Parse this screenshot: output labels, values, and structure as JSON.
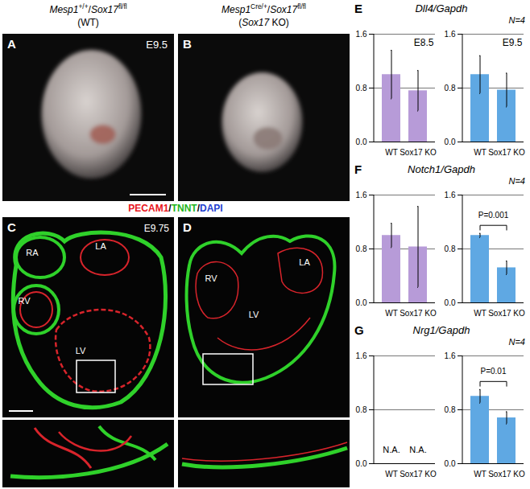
{
  "images": [
    {
      "panel": "A",
      "header": [
        [
          {
            "text": "Mesp1",
            "style": "italic"
          },
          {
            "text": "+/+",
            "style": "sup"
          },
          {
            "text": "/"
          },
          {
            "text": "Sox17",
            "style": "italic"
          },
          {
            "text": "fl/fl",
            "style": "sup"
          }
        ],
        [
          {
            "text": "(WT)"
          }
        ]
      ],
      "stage": "E9.5"
    },
    {
      "panel": "B",
      "header": [
        [
          {
            "text": "Mesp1",
            "style": "italic"
          },
          {
            "text": "Cre/+",
            "style": "sup"
          },
          {
            "text": "/"
          },
          {
            "text": "Sox17",
            "style": "italic"
          },
          {
            "text": "fl/fl",
            "style": "sup"
          }
        ],
        [
          {
            "text": "("
          },
          {
            "text": "Sox17",
            "style": "italic"
          },
          {
            "text": " KO)"
          }
        ]
      ]
    },
    {
      "panel": "C",
      "stage": "E9.75",
      "labels": [
        "RA",
        "LA",
        "RV",
        "LV"
      ]
    },
    {
      "panel": "D",
      "labels": [
        "RV",
        "LA",
        "LV"
      ]
    }
  ],
  "stain": [
    {
      "text": "PECAM1",
      "color": "#e8141b"
    },
    {
      "text": "/",
      "color": "#000000"
    },
    {
      "text": "TNNT",
      "color": "#22b51c"
    },
    {
      "text": "/",
      "color": "#000000"
    },
    {
      "text": "DAPI",
      "color": "#1f3fd0"
    }
  ],
  "chart_data": [
    {
      "panel": "E",
      "title": "Dll4/Gapdh",
      "note": "N=4",
      "charts": [
        {
          "type": "bar",
          "subtitle": "E8.5",
          "categories": [
            "WT",
            "Sox17 KO"
          ],
          "values": [
            1.0,
            0.76
          ],
          "errors": [
            0.36,
            0.3
          ],
          "color": "#b79bd8",
          "ylim": [
            0,
            1.6
          ],
          "yticks": [
            0,
            0.8,
            1.6
          ],
          "grid": true
        },
        {
          "type": "bar",
          "subtitle": "E9.5",
          "categories": [
            "WT",
            "Sox17 KO"
          ],
          "values": [
            1.0,
            0.77
          ],
          "errors": [
            0.28,
            0.25
          ],
          "color": "#5fa8e3",
          "ylim": [
            0,
            1.6
          ],
          "yticks": [
            0,
            0.8,
            1.6
          ],
          "grid": true
        }
      ]
    },
    {
      "panel": "F",
      "title": "Notch1/Gapdh",
      "note": "N=4",
      "charts": [
        {
          "type": "bar",
          "categories": [
            "WT",
            "Sox17 KO"
          ],
          "values": [
            1.0,
            0.83
          ],
          "errors": [
            0.18,
            0.6
          ],
          "color": "#b79bd8",
          "ylim": [
            0,
            1.6
          ],
          "yticks": [
            0,
            0.8,
            1.6
          ],
          "grid": true
        },
        {
          "type": "bar",
          "categories": [
            "WT",
            "Sox17 KO"
          ],
          "values": [
            1.0,
            0.52
          ],
          "errors": [
            0.03,
            0.1
          ],
          "color": "#5fa8e3",
          "ylim": [
            0,
            1.6
          ],
          "yticks": [
            0,
            0.8,
            1.6
          ],
          "grid": true,
          "annotations": [
            {
              "text": "P=0.001",
              "between": [
                "WT",
                "Sox17 KO"
              ]
            }
          ]
        }
      ]
    },
    {
      "panel": "G",
      "title": "Nrg1/Gapdh",
      "note": "N=4",
      "charts": [
        {
          "type": "bar",
          "categories": [
            "WT",
            "Sox17 KO"
          ],
          "values": [
            null,
            null
          ],
          "color": "#b79bd8",
          "ylim": [
            0,
            1.6
          ],
          "yticks": [
            0,
            0.8,
            1.6
          ],
          "grid": true,
          "annotations": [
            {
              "text": "N.A.",
              "at": "WT"
            },
            {
              "text": "N.A.",
              "at": "Sox17 KO"
            }
          ]
        },
        {
          "type": "bar",
          "categories": [
            "WT",
            "Sox17 KO"
          ],
          "values": [
            1.0,
            0.68
          ],
          "errors": [
            0.1,
            0.09
          ],
          "color": "#5fa8e3",
          "ylim": [
            0,
            1.6
          ],
          "yticks": [
            0,
            0.8,
            1.6
          ],
          "grid": true,
          "annotations": [
            {
              "text": "P=0.01",
              "between": [
                "WT",
                "Sox17 KO"
              ]
            }
          ]
        }
      ]
    }
  ]
}
